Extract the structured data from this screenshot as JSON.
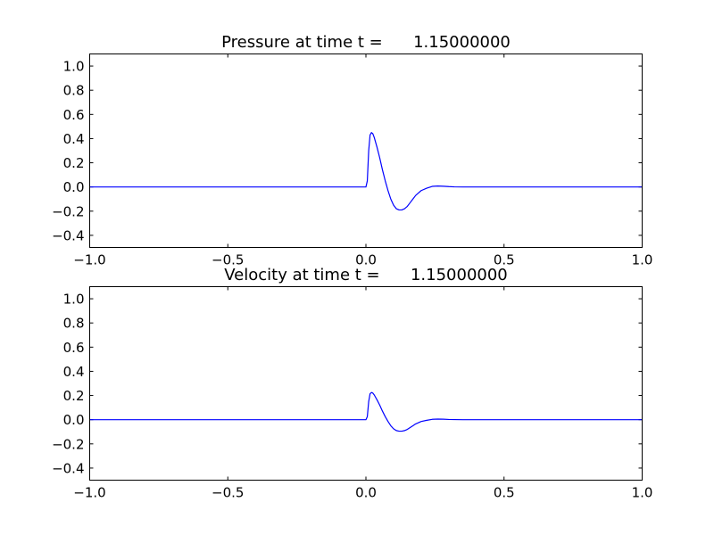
{
  "figure": {
    "background": "#ffffff"
  },
  "chart_data": [
    {
      "type": "line",
      "title": "Pressure at time t =      1.15000000",
      "xlabel": "",
      "ylabel": "",
      "xlim": [
        -1.0,
        1.0
      ],
      "ylim": [
        -0.5,
        1.1
      ],
      "grid": false,
      "x_ticks": [
        "−1.0",
        "−0.5",
        "0.0",
        "0.5",
        "1.0"
      ],
      "x_tick_values": [
        -1.0,
        -0.5,
        0.0,
        0.5,
        1.0
      ],
      "y_ticks": [
        "−0.4",
        "−0.2",
        "0.0",
        "0.2",
        "0.4",
        "0.6",
        "0.8",
        "1.0"
      ],
      "y_tick_values": [
        -0.4,
        -0.2,
        0.0,
        0.2,
        0.4,
        0.6,
        0.8,
        1.0
      ],
      "line_color": "#0000ff",
      "series": [
        {
          "x": [
            -1.0,
            -0.5,
            -0.01,
            0.0,
            0.005,
            0.01,
            0.015,
            0.02,
            0.025,
            0.03,
            0.04,
            0.05,
            0.06,
            0.07,
            0.08,
            0.09,
            0.1,
            0.11,
            0.12,
            0.13,
            0.14,
            0.15,
            0.16,
            0.17,
            0.18,
            0.19,
            0.2,
            0.22,
            0.24,
            0.26,
            0.28,
            0.3,
            0.32,
            0.35,
            0.4,
            0.5,
            1.0
          ],
          "y": [
            0.0,
            0.0,
            0.0,
            0.0,
            0.05,
            0.3,
            0.43,
            0.45,
            0.44,
            0.41,
            0.33,
            0.24,
            0.14,
            0.05,
            -0.03,
            -0.1,
            -0.15,
            -0.18,
            -0.19,
            -0.19,
            -0.18,
            -0.16,
            -0.13,
            -0.1,
            -0.07,
            -0.05,
            -0.03,
            -0.01,
            0.005,
            0.008,
            0.006,
            0.003,
            0.001,
            0.0,
            0.0,
            0.0,
            0.0
          ]
        }
      ]
    },
    {
      "type": "line",
      "title": "Velocity at time t =      1.15000000",
      "xlabel": "",
      "ylabel": "",
      "xlim": [
        -1.0,
        1.0
      ],
      "ylim": [
        -0.5,
        1.1
      ],
      "grid": false,
      "x_ticks": [
        "−1.0",
        "−0.5",
        "0.0",
        "0.5",
        "1.0"
      ],
      "x_tick_values": [
        -1.0,
        -0.5,
        0.0,
        0.5,
        1.0
      ],
      "y_ticks": [
        "−0.4",
        "−0.2",
        "0.0",
        "0.2",
        "0.4",
        "0.6",
        "0.8",
        "1.0"
      ],
      "y_tick_values": [
        -0.4,
        -0.2,
        0.0,
        0.2,
        0.4,
        0.6,
        0.8,
        1.0
      ],
      "line_color": "#0000ff",
      "series": [
        {
          "x": [
            -1.0,
            -0.5,
            -0.01,
            0.0,
            0.005,
            0.01,
            0.015,
            0.02,
            0.025,
            0.03,
            0.04,
            0.05,
            0.06,
            0.07,
            0.08,
            0.09,
            0.1,
            0.11,
            0.12,
            0.13,
            0.14,
            0.15,
            0.16,
            0.17,
            0.18,
            0.19,
            0.2,
            0.22,
            0.24,
            0.26,
            0.28,
            0.3,
            0.32,
            0.35,
            0.4,
            0.5,
            1.0
          ],
          "y": [
            0.0,
            0.0,
            0.0,
            0.0,
            0.025,
            0.15,
            0.215,
            0.225,
            0.22,
            0.205,
            0.165,
            0.12,
            0.07,
            0.025,
            -0.015,
            -0.05,
            -0.075,
            -0.09,
            -0.095,
            -0.095,
            -0.09,
            -0.08,
            -0.065,
            -0.05,
            -0.035,
            -0.025,
            -0.015,
            -0.005,
            0.003,
            0.005,
            0.004,
            0.002,
            0.001,
            0.0,
            0.0,
            0.0,
            0.0
          ]
        }
      ]
    }
  ]
}
